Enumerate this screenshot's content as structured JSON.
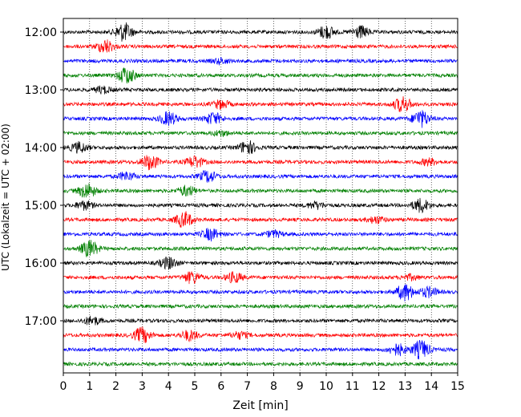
{
  "chart_data": {
    "type": "line",
    "title": "",
    "xlabel": "Zeit  [min]",
    "ylabel": "UTC (Lokalzeit = UTC + 02:00)",
    "xlim": [
      0,
      15
    ],
    "x_ticks": [
      "0",
      "1",
      "2",
      "3",
      "4",
      "5",
      "6",
      "7",
      "8",
      "9",
      "10",
      "11",
      "12",
      "13",
      "14",
      "15"
    ],
    "grid": "vertical dotted lines at each minute",
    "y_ticks": [
      "12:00",
      "13:00",
      "14:00",
      "15:00",
      "16:00",
      "17:00"
    ],
    "trace_interval_minutes": 15,
    "colors": [
      "#000000",
      "#ff0000",
      "#0000ff",
      "#008000"
    ],
    "traces": [
      {
        "start": "12:00",
        "color": "#000000",
        "events": [
          {
            "t": 2.3,
            "amp": 11
          },
          {
            "t": 10.0,
            "amp": 8
          },
          {
            "t": 11.3,
            "amp": 7
          }
        ]
      },
      {
        "start": "12:15",
        "color": "#ff0000",
        "events": [
          {
            "t": 1.6,
            "amp": 8
          }
        ]
      },
      {
        "start": "12:30",
        "color": "#0000ff",
        "events": [
          {
            "t": 6.0,
            "amp": 3
          }
        ]
      },
      {
        "start": "12:45",
        "color": "#008000",
        "events": [
          {
            "t": 2.4,
            "amp": 10
          }
        ]
      },
      {
        "start": "13:00",
        "color": "#000000",
        "events": [
          {
            "t": 1.5,
            "amp": 4
          }
        ]
      },
      {
        "start": "13:15",
        "color": "#ff0000",
        "events": [
          {
            "t": 6.0,
            "amp": 5
          },
          {
            "t": 12.9,
            "amp": 9
          }
        ]
      },
      {
        "start": "13:30",
        "color": "#0000ff",
        "events": [
          {
            "t": 4.0,
            "amp": 8
          },
          {
            "t": 5.7,
            "amp": 7
          },
          {
            "t": 13.6,
            "amp": 10
          }
        ]
      },
      {
        "start": "13:45",
        "color": "#008000",
        "events": [
          {
            "t": 6.0,
            "amp": 3
          }
        ]
      },
      {
        "start": "14:00",
        "color": "#000000",
        "events": [
          {
            "t": 0.6,
            "amp": 6
          },
          {
            "t": 7.0,
            "amp": 8
          }
        ]
      },
      {
        "start": "14:15",
        "color": "#ff0000",
        "events": [
          {
            "t": 3.3,
            "amp": 9
          },
          {
            "t": 5.0,
            "amp": 7
          },
          {
            "t": 13.9,
            "amp": 4
          }
        ]
      },
      {
        "start": "14:30",
        "color": "#0000ff",
        "events": [
          {
            "t": 2.4,
            "amp": 5
          },
          {
            "t": 5.5,
            "amp": 7
          }
        ]
      },
      {
        "start": "14:45",
        "color": "#008000",
        "events": [
          {
            "t": 0.9,
            "amp": 9
          },
          {
            "t": 4.7,
            "amp": 6
          }
        ]
      },
      {
        "start": "15:00",
        "color": "#000000",
        "events": [
          {
            "t": 0.8,
            "amp": 5
          },
          {
            "t": 9.6,
            "amp": 4
          },
          {
            "t": 13.6,
            "amp": 8
          }
        ]
      },
      {
        "start": "15:15",
        "color": "#ff0000",
        "events": [
          {
            "t": 4.6,
            "amp": 9
          },
          {
            "t": 11.9,
            "amp": 4
          }
        ]
      },
      {
        "start": "15:30",
        "color": "#0000ff",
        "events": [
          {
            "t": 5.6,
            "amp": 7
          },
          {
            "t": 8.0,
            "amp": 4
          }
        ]
      },
      {
        "start": "15:45",
        "color": "#008000",
        "events": [
          {
            "t": 1.0,
            "amp": 10
          }
        ]
      },
      {
        "start": "16:00",
        "color": "#000000",
        "events": [
          {
            "t": 4.0,
            "amp": 7
          }
        ]
      },
      {
        "start": "16:15",
        "color": "#ff0000",
        "events": [
          {
            "t": 4.9,
            "amp": 7
          },
          {
            "t": 6.5,
            "amp": 6
          },
          {
            "t": 13.2,
            "amp": 3
          }
        ]
      },
      {
        "start": "16:30",
        "color": "#0000ff",
        "events": [
          {
            "t": 13.0,
            "amp": 10
          },
          {
            "t": 13.9,
            "amp": 6
          }
        ]
      },
      {
        "start": "16:45",
        "color": "#008000",
        "events": []
      },
      {
        "start": "17:00",
        "color": "#000000",
        "events": [
          {
            "t": 1.1,
            "amp": 5
          }
        ]
      },
      {
        "start": "17:15",
        "color": "#ff0000",
        "events": [
          {
            "t": 3.0,
            "amp": 9
          },
          {
            "t": 4.8,
            "amp": 6
          },
          {
            "t": 6.7,
            "amp": 4
          }
        ]
      },
      {
        "start": "17:30",
        "color": "#0000ff",
        "events": [
          {
            "t": 12.7,
            "amp": 7
          },
          {
            "t": 13.6,
            "amp": 11
          }
        ]
      },
      {
        "start": "17:45",
        "color": "#008000",
        "events": []
      }
    ]
  }
}
